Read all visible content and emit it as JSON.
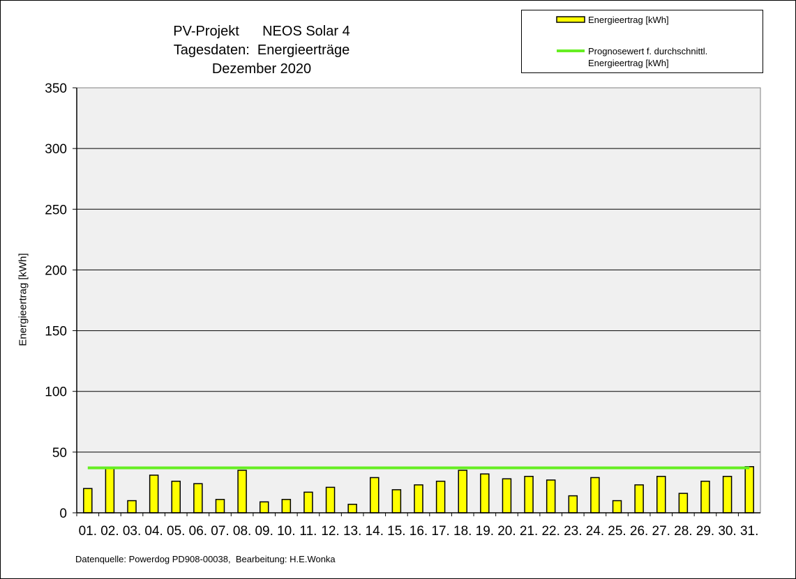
{
  "chart_data": {
    "type": "bar",
    "title": [
      "PV-Projekt      NEOS Solar 4",
      "Tagesdaten:  Energieerträge",
      "Dezember 2020"
    ],
    "ylabel": "Energieertrag [kWh]",
    "ylim": [
      0,
      350
    ],
    "yticks": [
      0,
      50,
      100,
      150,
      200,
      250,
      300,
      350
    ],
    "categories": [
      "01.",
      "02.",
      "03.",
      "04.",
      "05.",
      "06.",
      "07.",
      "08.",
      "09.",
      "10.",
      "11.",
      "12.",
      "13.",
      "14.",
      "15.",
      "16.",
      "17.",
      "18.",
      "19.",
      "20.",
      "21.",
      "22.",
      "23.",
      "24.",
      "25.",
      "26.",
      "27.",
      "28.",
      "29.",
      "30.",
      "31."
    ],
    "series": [
      {
        "name": "Energieertrag [kWh]",
        "type": "bar",
        "color": "#ffff00",
        "values": [
          20,
          37,
          10,
          31,
          26,
          24,
          11,
          35,
          9,
          11,
          17,
          21,
          7,
          29,
          19,
          23,
          26,
          35,
          32,
          28,
          30,
          27,
          14,
          29,
          10,
          23,
          30,
          16,
          26,
          30,
          38
        ]
      },
      {
        "name": "Prognosewert f. durchschnittl. Energieertrag  [kWh]",
        "type": "line",
        "color": "#66ee22",
        "value": 37
      }
    ],
    "grid": true,
    "legend": "top-right",
    "plot_background": "#f0f0f0"
  },
  "legend": {
    "bar_label": "Energieertrag [kWh]",
    "line_label_1": "Prognosewert f. durchschnittl.",
    "line_label_2": "Energieertrag  [kWh]"
  },
  "footer": "Datenquelle: Powerdog PD908-00038,  Bearbeitung: H.E.Wonka"
}
